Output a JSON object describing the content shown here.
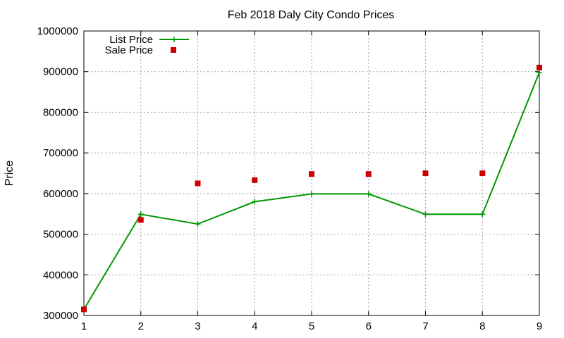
{
  "chart_data": {
    "type": "line",
    "title": "Feb 2018 Daly City Condo Prices",
    "xlabel": "",
    "ylabel": "Price",
    "x": [
      1,
      2,
      3,
      4,
      5,
      6,
      7,
      8,
      9
    ],
    "xlim": [
      1,
      9
    ],
    "ylim": [
      300000,
      1000000
    ],
    "xticks": [
      "1",
      "2",
      "3",
      "4",
      "5",
      "6",
      "7",
      "8",
      "9"
    ],
    "yticks": [
      "300000",
      "400000",
      "500000",
      "600000",
      "700000",
      "800000",
      "900000",
      "1000000"
    ],
    "grid": true,
    "legend_position": "top-left",
    "series": [
      {
        "name": "List Price",
        "style": "linespoints",
        "marker": "plus",
        "color": "#009900",
        "values": [
          315000,
          549000,
          525000,
          580000,
          599000,
          599000,
          549000,
          549000,
          898000
        ]
      },
      {
        "name": "Sale Price",
        "style": "points",
        "marker": "square",
        "color": "#cc0000",
        "values": [
          315000,
          535000,
          625000,
          633000,
          648000,
          648000,
          650000,
          650000,
          910000
        ]
      }
    ]
  }
}
